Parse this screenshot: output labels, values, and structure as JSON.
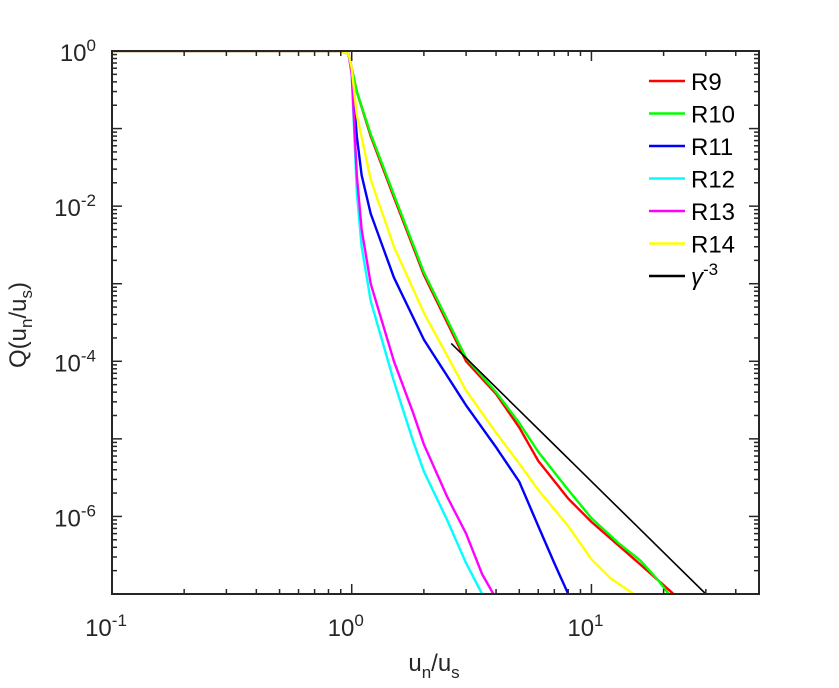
{
  "chart_data": {
    "type": "line",
    "title": "",
    "xlabel": {
      "base": "u",
      "sub1": "n",
      "sep": "/u",
      "sub2": "s"
    },
    "ylabel": {
      "prefix": "Q(u",
      "sub1": "n",
      "sep": "/u",
      "sub2": "s",
      "suffix": ")"
    },
    "xscale": "log",
    "yscale": "log",
    "xlim": [
      0.1,
      50
    ],
    "ylim": [
      1e-07,
      1
    ],
    "xticks": [
      {
        "value": 0.1,
        "base": "10",
        "exp": "-1"
      },
      {
        "value": 1,
        "base": "10",
        "exp": "0"
      },
      {
        "value": 10,
        "base": "10",
        "exp": "1"
      }
    ],
    "yticks": [
      {
        "value": 1,
        "base": "10",
        "exp": "0"
      },
      {
        "value": 0.01,
        "base": "10",
        "exp": "-2"
      },
      {
        "value": 0.0001,
        "base": "10",
        "exp": "-4"
      },
      {
        "value": 1e-06,
        "base": "10",
        "exp": "-6"
      }
    ],
    "grid": false,
    "legend_position": "top-right",
    "series": [
      {
        "name": "R9",
        "color": "#ff0000",
        "x": [
          0.1,
          0.9,
          0.97,
          1.0,
          1.05,
          1.2,
          1.5,
          2.0,
          3.0,
          4.0,
          5.0,
          6.0,
          8.0,
          10.0,
          13.0,
          16.0,
          20.0,
          22.0
        ],
        "y": [
          1,
          1,
          0.92,
          0.6,
          0.3,
          0.08,
          0.013,
          0.0013,
          0.0001,
          3.8e-05,
          1.4e-05,
          5.2e-06,
          1.7e-06,
          8.5e-07,
          4.2e-07,
          2.4e-07,
          1.3e-07,
          1e-07
        ]
      },
      {
        "name": "R10",
        "color": "#00ff00",
        "x": [
          0.1,
          0.9,
          0.97,
          1.0,
          1.05,
          1.2,
          1.5,
          2.0,
          3.0,
          4.0,
          5.0,
          6.0,
          8.0,
          10.0,
          13.0,
          16.0,
          19.0,
          21.0
        ],
        "y": [
          1,
          1,
          0.92,
          0.6,
          0.3,
          0.085,
          0.014,
          0.0014,
          0.00011,
          4e-05,
          1.6e-05,
          6.8e-06,
          2.2e-06,
          9.5e-07,
          4.5e-07,
          2.7e-07,
          1.5e-07,
          1e-07
        ]
      },
      {
        "name": "R11",
        "color": "#0000ff",
        "x": [
          0.1,
          0.9,
          0.97,
          1.0,
          1.05,
          1.1,
          1.2,
          1.5,
          2.0,
          3.0,
          4.0,
          5.0,
          6.0,
          7.0,
          8.0
        ],
        "y": [
          1,
          1,
          0.92,
          0.55,
          0.08,
          0.025,
          0.008,
          0.0012,
          0.00019,
          2.7e-05,
          7.8e-06,
          2.8e-06,
          7.5e-07,
          2.5e-07,
          1e-07
        ]
      },
      {
        "name": "R12",
        "color": "#00ffff",
        "x": [
          0.1,
          0.9,
          0.97,
          1.0,
          1.05,
          1.1,
          1.2,
          1.5,
          1.8,
          2.0,
          2.5,
          3.0,
          3.5
        ],
        "y": [
          1,
          1,
          0.92,
          0.5,
          0.015,
          0.003,
          0.0006,
          5.5e-05,
          9.5e-06,
          3.8e-06,
          9e-07,
          2.5e-07,
          1e-07
        ]
      },
      {
        "name": "R13",
        "color": "#ff00ff",
        "x": [
          0.1,
          0.9,
          0.97,
          1.0,
          1.05,
          1.1,
          1.2,
          1.5,
          1.8,
          2.0,
          2.5,
          3.0,
          3.5,
          3.9
        ],
        "y": [
          1,
          1,
          0.92,
          0.5,
          0.025,
          0.005,
          0.001,
          0.0001,
          2.2e-05,
          8.5e-06,
          1.8e-06,
          6e-07,
          1.8e-07,
          1e-07
        ]
      },
      {
        "name": "R14",
        "color": "#ffff00",
        "x": [
          0.1,
          0.9,
          0.97,
          1.0,
          1.05,
          1.2,
          1.5,
          2.0,
          3.0,
          4.0,
          5.0,
          6.0,
          8.0,
          10.0,
          12.0,
          15.0
        ],
        "y": [
          1,
          1,
          0.92,
          0.6,
          0.15,
          0.022,
          0.003,
          0.00042,
          4.2e-05,
          1.2e-05,
          4.8e-06,
          2.2e-06,
          7.5e-07,
          2.8e-07,
          1.6e-07,
          1e-07
        ]
      },
      {
        "name": "γ⁻³",
        "label_base": "γ",
        "label_exp": "-3",
        "color": "#000000",
        "x": [
          2.6,
          30.0
        ],
        "y": [
          0.00017,
          1e-07
        ]
      }
    ]
  }
}
